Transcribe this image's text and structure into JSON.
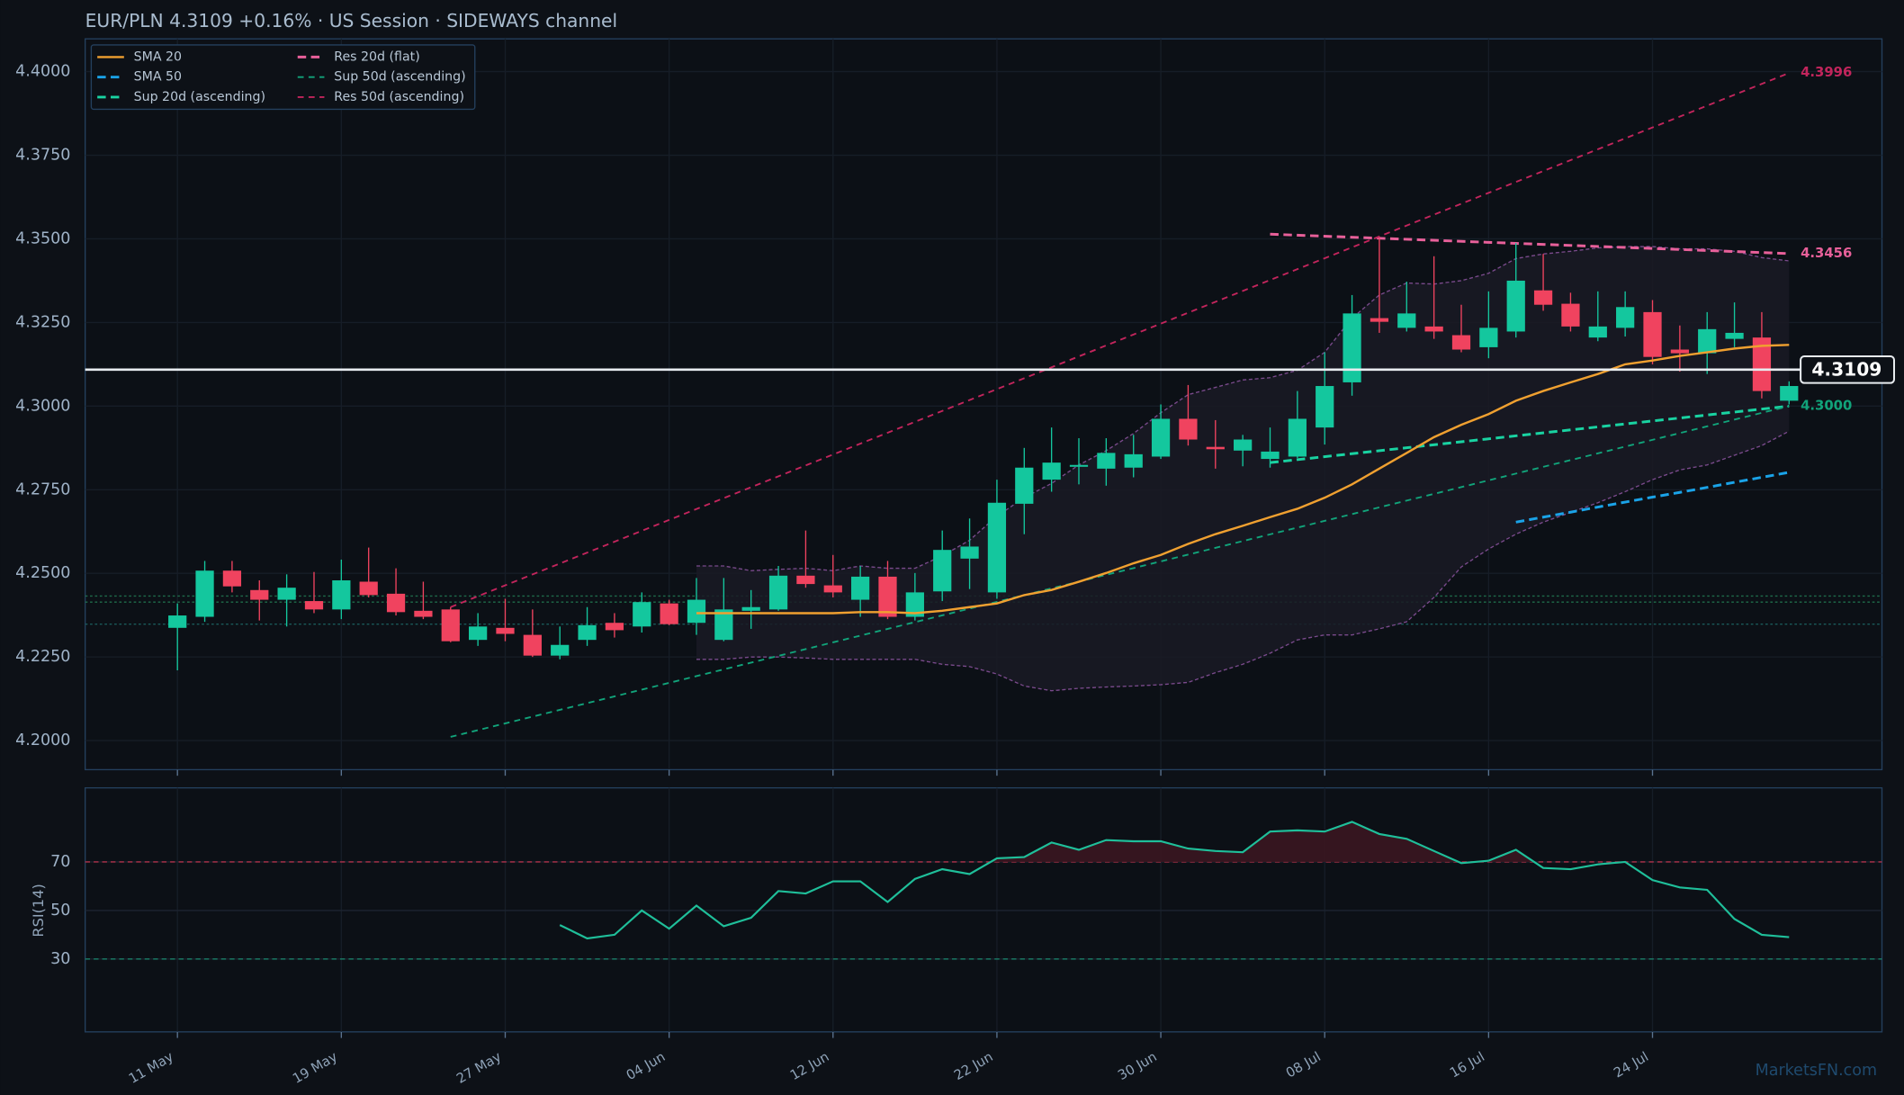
{
  "chart_data": [
    {
      "type": "candlestick",
      "title": "EUR/PLN   4.3109   +0.16%  ·  US Session  ·  SIDEWAYS channel",
      "categories": [
        "11 May",
        null,
        null,
        null,
        null,
        null,
        "19 May",
        null,
        null,
        null,
        null,
        null,
        "27 May",
        null,
        null,
        null,
        null,
        null,
        "04 Jun",
        null,
        null,
        null,
        null,
        null,
        "12 Jun",
        null,
        null,
        null,
        null,
        null,
        "22 Jun",
        null,
        null,
        null,
        null,
        null,
        "30 Jun",
        null,
        null,
        null,
        null,
        null,
        "08 Jul",
        null,
        null,
        null,
        null,
        null,
        "16 Jul",
        null,
        null,
        null,
        null,
        null,
        "24 Jul",
        null,
        null,
        null,
        null,
        null
      ],
      "open": [
        4.2337,
        4.237,
        4.2508,
        4.245,
        4.2421,
        4.2417,
        4.2392,
        4.2475,
        4.2439,
        4.2388,
        4.2392,
        4.2301,
        4.2337,
        4.2316,
        4.2254,
        4.2301,
        4.2352,
        4.2341,
        4.241,
        4.2352,
        4.2301,
        4.2388,
        4.2392,
        4.2493,
        4.2464,
        4.2421,
        4.249,
        4.237,
        4.2446,
        4.2544,
        4.2443,
        4.2708,
        4.278,
        4.282,
        4.2813,
        4.2816,
        4.2849,
        4.2962,
        4.2878,
        4.2867,
        4.2842,
        4.2849,
        4.2936,
        4.3071,
        4.3263,
        4.3234,
        4.3238,
        4.3212,
        4.3176,
        4.3223,
        4.3346,
        4.3306,
        4.3205,
        4.3234,
        4.3281,
        4.3169,
        4.3158,
        4.3201,
        4.3205,
        4.3016
      ],
      "high": [
        4.241,
        4.2537,
        4.2537,
        4.2479,
        4.2497,
        4.2504,
        4.2541,
        4.2577,
        4.2515,
        4.2475,
        4.2399,
        4.2381,
        4.2424,
        4.2392,
        4.2341,
        4.2399,
        4.2381,
        4.2443,
        4.2421,
        4.2486,
        4.2486,
        4.245,
        4.2522,
        4.2628,
        4.2555,
        4.2522,
        4.2537,
        4.2501,
        4.2628,
        4.2664,
        4.278,
        4.2875,
        4.2936,
        4.2904,
        4.2904,
        4.2914,
        4.3005,
        4.3063,
        4.2958,
        4.2914,
        4.2936,
        4.3045,
        4.3161,
        4.3332,
        4.3503,
        4.3372,
        4.3448,
        4.3303,
        4.3343,
        4.3488,
        4.3455,
        4.3339,
        4.3343,
        4.3343,
        4.3317,
        4.3241,
        4.3281,
        4.331,
        4.3281,
        4.3074
      ],
      "low": [
        4.221,
        4.2355,
        4.2443,
        4.2359,
        4.2341,
        4.2381,
        4.2363,
        4.2428,
        4.2374,
        4.2363,
        4.2294,
        4.2283,
        4.2297,
        4.225,
        4.2243,
        4.2283,
        4.2308,
        4.2323,
        4.2345,
        4.2316,
        4.2297,
        4.2334,
        4.2388,
        4.2457,
        4.2428,
        4.237,
        4.2363,
        4.2359,
        4.2417,
        4.2453,
        4.2424,
        4.2617,
        4.2744,
        4.2766,
        4.2762,
        4.2787,
        4.2842,
        4.2882,
        4.2813,
        4.282,
        4.2816,
        4.2845,
        4.2885,
        4.3031,
        4.3219,
        4.3223,
        4.3201,
        4.3161,
        4.3143,
        4.3205,
        4.3285,
        4.3223,
        4.3194,
        4.3208,
        4.3125,
        4.3103,
        4.3096,
        4.3176,
        4.3023,
        4.3005
      ],
      "close": [
        4.2374,
        4.2508,
        4.2461,
        4.2421,
        4.2457,
        4.2392,
        4.2479,
        4.2435,
        4.2384,
        4.237,
        4.2297,
        4.2341,
        4.2319,
        4.2254,
        4.2286,
        4.2345,
        4.233,
        4.2414,
        4.2348,
        4.2421,
        4.2392,
        4.2399,
        4.2493,
        4.2468,
        4.2443,
        4.249,
        4.237,
        4.2443,
        4.257,
        4.258,
        4.2711,
        4.2816,
        4.2831,
        4.2824,
        4.286,
        4.2856,
        4.2962,
        4.29,
        4.2871,
        4.29,
        4.2864,
        4.2962,
        4.306,
        4.3277,
        4.3252,
        4.3277,
        4.3223,
        4.3169,
        4.3234,
        4.3375,
        4.3303,
        4.3238,
        4.3238,
        4.3296,
        4.3147,
        4.3158,
        4.323,
        4.3219,
        4.3045,
        4.306
      ],
      "up_color": "#14c79e",
      "down_color": "#f0435f",
      "series": [
        {
          "name": "SMA 20",
          "color": "#f0a030",
          "style": "solid",
          "values": [
            null,
            null,
            null,
            null,
            null,
            null,
            null,
            null,
            null,
            null,
            null,
            null,
            null,
            null,
            null,
            null,
            null,
            null,
            null,
            4.2381,
            4.2381,
            4.2381,
            4.2381,
            4.2381,
            4.2381,
            4.2384,
            4.2384,
            4.2381,
            4.2388,
            4.2399,
            4.241,
            4.2435,
            4.245,
            4.2475,
            4.2501,
            4.253,
            4.2555,
            4.2588,
            4.2617,
            4.2642,
            4.2668,
            4.2693,
            4.2726,
            4.2766,
            4.2813,
            4.286,
            4.2907,
            4.2944,
            4.2976,
            4.3016,
            4.3045,
            4.3071,
            4.3096,
            4.3125,
            4.3136,
            4.315,
            4.3161,
            4.3172,
            4.318,
            4.3183
          ]
        },
        {
          "name": "SMA 50",
          "color": "#1aa3e8",
          "style": "dashed-bold",
          "values": [
            null,
            null,
            null,
            null,
            null,
            null,
            null,
            null,
            null,
            null,
            null,
            null,
            null,
            null,
            null,
            null,
            null,
            null,
            null,
            null,
            null,
            null,
            null,
            null,
            null,
            null,
            null,
            null,
            null,
            null,
            null,
            null,
            null,
            null,
            null,
            null,
            null,
            null,
            null,
            null,
            null,
            null,
            null,
            null,
            null,
            null,
            null,
            null,
            null,
            4.2653,
            4.2668,
            4.2683,
            4.2698,
            4.2713,
            4.2728,
            4.2742,
            4.2757,
            4.2772,
            4.2787,
            4.2802
          ]
        }
      ],
      "bands": {
        "color": "#7a4a8c",
        "upper": [
          null,
          null,
          null,
          null,
          null,
          null,
          null,
          null,
          null,
          null,
          null,
          null,
          null,
          null,
          null,
          null,
          null,
          null,
          null,
          4.2522,
          4.2522,
          4.2508,
          4.2512,
          4.2515,
          4.2508,
          4.2522,
          4.2515,
          4.2515,
          4.2552,
          4.2599,
          4.2671,
          4.2726,
          4.2769,
          4.2824,
          4.2867,
          4.2918,
          4.298,
          4.3034,
          4.3056,
          4.3078,
          4.3085,
          4.3107,
          4.3161,
          4.3263,
          4.3332,
          4.3368,
          4.3365,
          4.3375,
          4.3397,
          4.3441,
          4.3455,
          4.3463,
          4.3473,
          4.3477,
          4.3477,
          4.347,
          4.347,
          4.3463,
          4.3444,
          4.3434
        ],
        "lower": [
          null,
          null,
          null,
          null,
          null,
          null,
          null,
          null,
          null,
          null,
          null,
          null,
          null,
          null,
          null,
          null,
          null,
          null,
          null,
          4.2243,
          4.2243,
          4.225,
          4.225,
          4.2247,
          4.2243,
          4.2243,
          4.2243,
          4.2243,
          4.2228,
          4.2221,
          4.2199,
          4.2163,
          4.2149,
          4.2156,
          4.216,
          4.2163,
          4.2167,
          4.2174,
          4.2203,
          4.2228,
          4.2261,
          4.2301,
          4.2316,
          4.2316,
          4.2334,
          4.2355,
          4.2428,
          4.2519,
          4.2573,
          4.2617,
          4.2653,
          4.2682,
          4.2711,
          4.2744,
          4.278,
          4.2809,
          4.2824,
          4.2853,
          4.2882,
          4.2925
        ]
      },
      "trendlines": [
        {
          "name": "Sup 20d (ascending)",
          "color": "#19d3a2",
          "style": "dashed-bold",
          "x": [
            40,
            59
          ],
          "values": [
            4.2831,
            4.3
          ]
        },
        {
          "name": "Res 20d (flat)",
          "color": "#e8609a",
          "style": "dashed-bold",
          "x": [
            40,
            59
          ],
          "values": [
            4.3514,
            4.3456
          ],
          "end_label": true
        },
        {
          "name": "Sup 50d (ascending)",
          "color": "#11a37a",
          "style": "dashed",
          "x": [
            10,
            59
          ],
          "values": [
            4.2011,
            4.3
          ],
          "value_labels": [
            null,
            "4.3000"
          ]
        },
        {
          "name": "Res 50d (ascending)",
          "color": "#c2255c",
          "style": "dashed",
          "x": [
            10,
            59
          ],
          "values": [
            4.2399,
            4.3996
          ],
          "end_label": true
        }
      ],
      "levels": [
        {
          "value": 4.2432,
          "color": "#1f6b4a"
        },
        {
          "value": 4.2414,
          "color": "#1f6b4a"
        },
        {
          "value": 4.2348,
          "color": "#1a5a5a"
        }
      ],
      "last_price": 4.3109,
      "ylim": [
        4.1913,
        4.4098
      ],
      "yticks": [
        {
          "value": 4.2,
          "label": "4.2000"
        },
        {
          "value": 4.225,
          "label": "4.2250"
        },
        {
          "value": 4.25,
          "label": "4.2500"
        },
        {
          "value": 4.275,
          "label": "4.2750"
        },
        {
          "value": 4.3,
          "label": "4.3000"
        },
        {
          "value": 4.325,
          "label": "4.3250"
        },
        {
          "value": 4.35,
          "label": "4.3500"
        },
        {
          "value": 4.375,
          "label": "4.3750"
        },
        {
          "value": 4.4,
          "label": "4.4000"
        }
      ],
      "grid": true,
      "legend": "upper left"
    },
    {
      "type": "line",
      "ylabel": "RSI(14)",
      "series": [
        {
          "name": "RSI(14)",
          "color": "#1fbf9a",
          "values": [
            null,
            null,
            null,
            null,
            null,
            null,
            null,
            null,
            null,
            null,
            null,
            null,
            null,
            null,
            44,
            38.5,
            40,
            50,
            42.5,
            52,
            43.5,
            47,
            58,
            57,
            62,
            62,
            53.5,
            63,
            67,
            65,
            71.5,
            72,
            78,
            75,
            79,
            78.5,
            78.5,
            75.5,
            74.5,
            74,
            82.5,
            83,
            82.5,
            86.5,
            81.5,
            79.5,
            74.5,
            69.5,
            70.5,
            75,
            67.5,
            67,
            69,
            70,
            62.5,
            59.5,
            58.5,
            46.5,
            40,
            39
          ]
        }
      ],
      "overbought": {
        "value": 70,
        "color": "#b0304a"
      },
      "oversold": {
        "value": 30,
        "color": "#1a8a70"
      },
      "ylim": [
        0,
        100.5
      ],
      "yticks": [
        30,
        50,
        70
      ],
      "grid": true
    }
  ],
  "watermark": "MarketsFN.com"
}
